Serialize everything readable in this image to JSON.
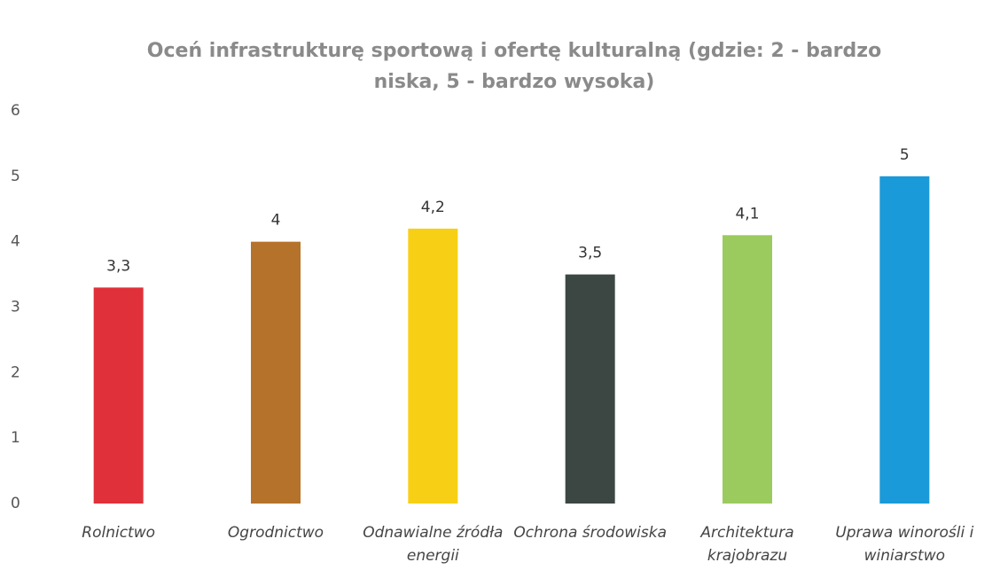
{
  "chart_data": {
    "type": "bar",
    "title": "Oceń infrastrukturę sportową i ofertę kulturalną (gdzie: 2 - bardzo niska, 5 - bardzo wysoka)",
    "categories": [
      "Rolnictwo",
      "Ogrodnictwo",
      "Odnawialne źródła energii",
      "Ochrona środowiska",
      "Architektura krajobrazu",
      "Uprawa winorośli i winiarstwo"
    ],
    "values": [
      3.3,
      4,
      4.2,
      3.5,
      4.1,
      5
    ],
    "value_labels": [
      "3,3",
      "4",
      "4,2",
      "3,5",
      "4,1",
      "5"
    ],
    "colors": [
      "#e0313a",
      "#b5722a",
      "#f7d015",
      "#3c4743",
      "#9bcb5e",
      "#1a9ad8"
    ],
    "ylim": [
      0,
      6
    ],
    "yticks": [
      0,
      1,
      2,
      3,
      4,
      5,
      6
    ],
    "grid": false
  }
}
